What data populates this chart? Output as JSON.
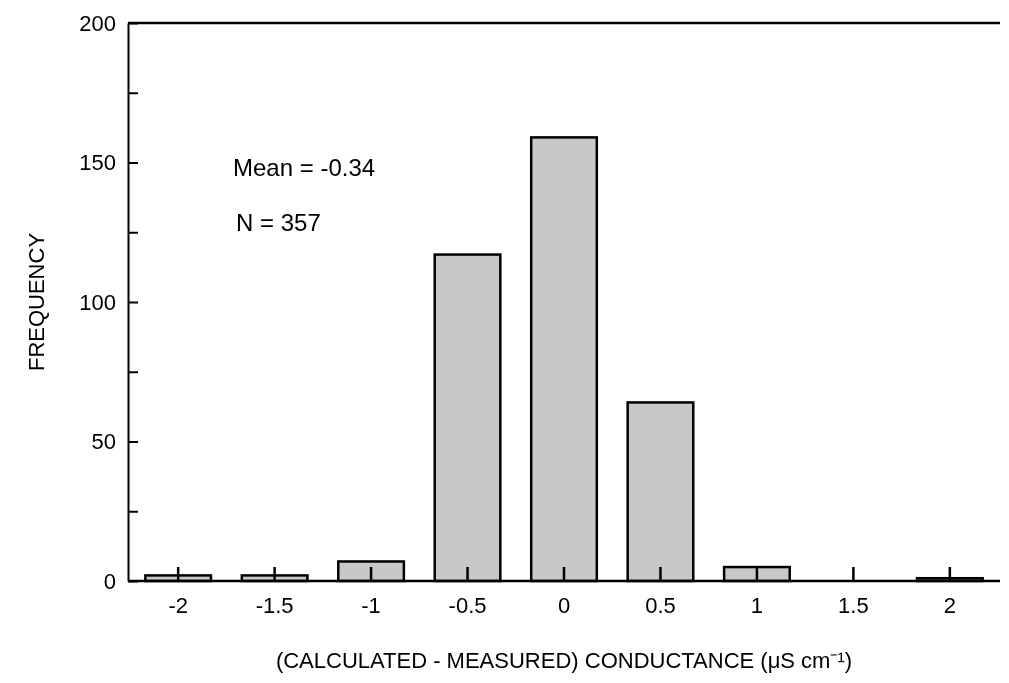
{
  "chart_data": {
    "type": "bar",
    "xlabel": "(CALCULATED - MEASURED) CONDUCTANCE  (μS cm⁻¹)",
    "ylabel": "FREQUENCY",
    "categories": [
      "-2",
      "-1.5",
      "-1",
      "-0.5",
      "0",
      "0.5",
      "1",
      "1.5",
      "2"
    ],
    "values": [
      2,
      2,
      7,
      117,
      159,
      64,
      5,
      0,
      1
    ],
    "color": "#c8c8c8",
    "ylim": [
      0,
      200
    ],
    "yticks": [
      0,
      {
        "value": 25,
        "label": null
      },
      50,
      {
        "value": 75,
        "label": null
      },
      100,
      {
        "value": 125,
        "label": null
      },
      150,
      {
        "value": 175,
        "label": null
      },
      200
    ],
    "annotations": [
      "Mean = -0.34",
      "N = 357"
    ],
    "grid": false
  }
}
